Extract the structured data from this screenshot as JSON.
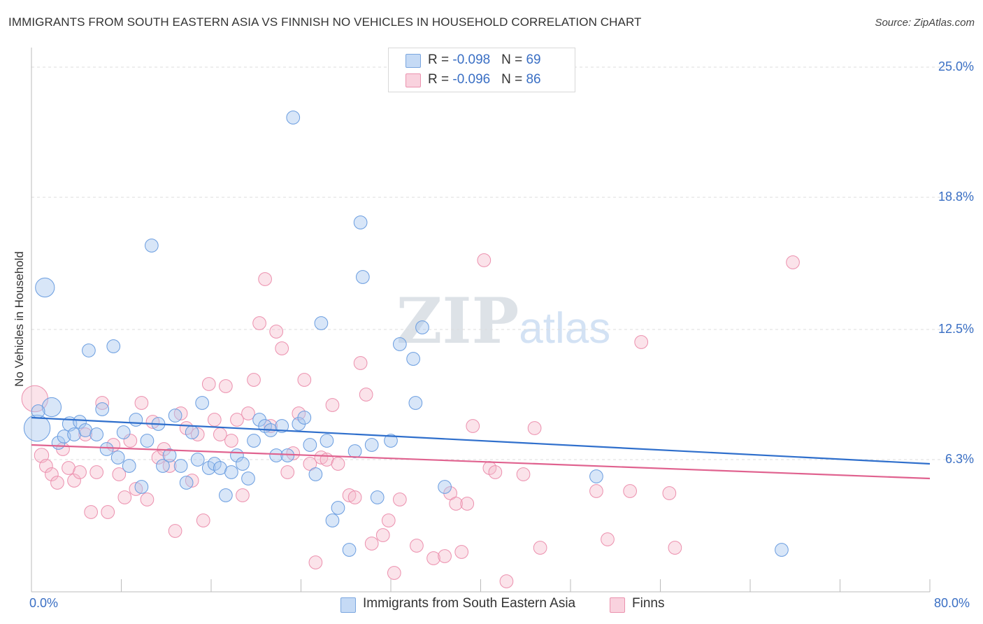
{
  "header": {
    "title": "IMMIGRANTS FROM SOUTH EASTERN ASIA VS FINNISH NO VEHICLES IN HOUSEHOLD CORRELATION CHART",
    "source": "Source: ZipAtlas.com"
  },
  "watermark": "ZIPatlas",
  "legend": {
    "rows": [
      {
        "r_label": "R = ",
        "r_value": "-0.098",
        "n_label": "N = ",
        "n_value": "69",
        "color": "#a8c8f0"
      },
      {
        "r_label": "R = ",
        "r_value": "-0.096",
        "n_label": "N = ",
        "n_value": "86",
        "color": "#f5b8ca"
      }
    ]
  },
  "bottom_legend": {
    "series1": "Immigrants from South Eastern Asia",
    "series2": "Finns"
  },
  "chart_data": {
    "type": "scatter",
    "title": "IMMIGRANTS FROM SOUTH EASTERN ASIA VS FINNISH NO VEHICLES IN HOUSEHOLD CORRELATION CHART",
    "xlabel": "",
    "ylabel": "No Vehicles in Household",
    "xlim": [
      0,
      80
    ],
    "ylim": [
      0,
      25.6
    ],
    "x_tick_labels": [
      "0.0%",
      "80.0%"
    ],
    "y_ticks": [
      6.3,
      12.5,
      18.8,
      25.0
    ],
    "y_tick_labels": [
      "6.3%",
      "12.5%",
      "18.8%",
      "25.0%"
    ],
    "grid": true,
    "legend_position": "top-center",
    "colors": {
      "series1": "#a8c8f0",
      "series1_line": "#2f6fcc",
      "series2": "#f5b8ca",
      "series2_line": "#e0628f"
    },
    "series": [
      {
        "name": "Immigrants from South Eastern Asia",
        "r": -0.098,
        "n": 69,
        "trend": [
          [
            0,
            8.3
          ],
          [
            80,
            6.1
          ]
        ],
        "points": [
          [
            0.5,
            7.8,
            2.2
          ],
          [
            1.2,
            14.5,
            1.6
          ],
          [
            1.8,
            8.8,
            1.6
          ],
          [
            2.4,
            7.1,
            1.1
          ],
          [
            2.9,
            7.4,
            1.1
          ],
          [
            3.4,
            8.0,
            1.2
          ],
          [
            3.8,
            7.5,
            1.1
          ],
          [
            4.3,
            8.1,
            1.1
          ],
          [
            4.8,
            7.7,
            1.1
          ],
          [
            5.1,
            11.5,
            1.1
          ],
          [
            5.8,
            7.5,
            1.1
          ],
          [
            6.3,
            8.7,
            1.1
          ],
          [
            6.7,
            6.8,
            1.1
          ],
          [
            7.3,
            11.7,
            1.1
          ],
          [
            7.7,
            6.4,
            1.1
          ],
          [
            8.2,
            7.6,
            1.1
          ],
          [
            8.7,
            6.0,
            1.1
          ],
          [
            9.3,
            8.2,
            1.1
          ],
          [
            9.8,
            5.0,
            1.1
          ],
          [
            10.3,
            7.2,
            1.1
          ],
          [
            10.7,
            16.5,
            1.1
          ],
          [
            11.3,
            8.0,
            1.1
          ],
          [
            11.7,
            6.0,
            1.1
          ],
          [
            12.3,
            6.5,
            1.1
          ],
          [
            12.8,
            8.4,
            1.1
          ],
          [
            13.3,
            6.0,
            1.1
          ],
          [
            13.8,
            5.2,
            1.1
          ],
          [
            14.3,
            7.6,
            1.1
          ],
          [
            14.8,
            6.3,
            1.1
          ],
          [
            15.2,
            9.0,
            1.1
          ],
          [
            15.8,
            5.9,
            1.1
          ],
          [
            16.3,
            6.1,
            1.1
          ],
          [
            16.8,
            5.9,
            1.1
          ],
          [
            17.3,
            4.6,
            1.1
          ],
          [
            17.8,
            5.7,
            1.1
          ],
          [
            18.3,
            6.5,
            1.1
          ],
          [
            18.8,
            6.1,
            1.1
          ],
          [
            19.3,
            5.4,
            1.1
          ],
          [
            19.8,
            7.2,
            1.1
          ],
          [
            20.3,
            8.2,
            1.1
          ],
          [
            20.8,
            7.9,
            1.1
          ],
          [
            21.3,
            7.7,
            1.1
          ],
          [
            21.8,
            6.5,
            1.1
          ],
          [
            22.3,
            7.9,
            1.1
          ],
          [
            22.8,
            6.5,
            1.1
          ],
          [
            23.3,
            22.6,
            1.1
          ],
          [
            23.8,
            8.0,
            1.1
          ],
          [
            24.3,
            8.3,
            1.1
          ],
          [
            24.8,
            7.0,
            1.1
          ],
          [
            25.3,
            5.6,
            1.1
          ],
          [
            25.8,
            12.8,
            1.1
          ],
          [
            26.3,
            7.2,
            1.1
          ],
          [
            26.8,
            3.4,
            1.1
          ],
          [
            27.3,
            4.0,
            1.1
          ],
          [
            28.3,
            2.0,
            1.1
          ],
          [
            28.8,
            6.7,
            1.1
          ],
          [
            29.3,
            17.6,
            1.1
          ],
          [
            29.5,
            15.0,
            1.1
          ],
          [
            30.3,
            7.0,
            1.1
          ],
          [
            30.8,
            4.5,
            1.1
          ],
          [
            32.0,
            7.2,
            1.1
          ],
          [
            32.8,
            11.8,
            1.1
          ],
          [
            34.0,
            11.1,
            1.1
          ],
          [
            34.2,
            9.0,
            1.1
          ],
          [
            34.8,
            12.6,
            1.1
          ],
          [
            36.8,
            5.0,
            1.1
          ],
          [
            50.3,
            5.5,
            1.1
          ],
          [
            66.8,
            2.0,
            1.1
          ],
          [
            0.6,
            8.6,
            1.1
          ]
        ]
      },
      {
        "name": "Finns",
        "r": -0.096,
        "n": 86,
        "trend": [
          [
            0,
            7.0
          ],
          [
            80,
            5.4
          ]
        ],
        "points": [
          [
            0.3,
            9.2,
            2.2
          ],
          [
            0.9,
            6.5,
            1.2
          ],
          [
            1.3,
            6.0,
            1.1
          ],
          [
            1.8,
            5.6,
            1.1
          ],
          [
            2.3,
            5.2,
            1.1
          ],
          [
            2.8,
            6.8,
            1.1
          ],
          [
            3.3,
            5.9,
            1.1
          ],
          [
            3.8,
            5.3,
            1.1
          ],
          [
            4.3,
            5.7,
            1.1
          ],
          [
            4.8,
            7.5,
            1.1
          ],
          [
            5.3,
            3.8,
            1.1
          ],
          [
            5.8,
            5.7,
            1.1
          ],
          [
            6.3,
            9.0,
            1.1
          ],
          [
            6.8,
            3.8,
            1.1
          ],
          [
            7.3,
            7.0,
            1.1
          ],
          [
            7.8,
            5.6,
            1.1
          ],
          [
            8.3,
            4.5,
            1.1
          ],
          [
            8.8,
            7.2,
            1.1
          ],
          [
            9.3,
            4.9,
            1.1
          ],
          [
            9.8,
            9.0,
            1.1
          ],
          [
            10.3,
            4.4,
            1.1
          ],
          [
            10.8,
            8.1,
            1.1
          ],
          [
            11.3,
            6.4,
            1.1
          ],
          [
            11.8,
            6.8,
            1.1
          ],
          [
            12.3,
            6.0,
            1.1
          ],
          [
            12.8,
            2.9,
            1.1
          ],
          [
            13.3,
            8.5,
            1.1
          ],
          [
            13.8,
            7.8,
            1.1
          ],
          [
            14.3,
            5.3,
            1.1
          ],
          [
            14.8,
            7.5,
            1.1
          ],
          [
            15.3,
            3.4,
            1.1
          ],
          [
            15.8,
            9.9,
            1.1
          ],
          [
            16.3,
            8.2,
            1.1
          ],
          [
            16.8,
            7.5,
            1.1
          ],
          [
            17.3,
            9.8,
            1.1
          ],
          [
            17.8,
            7.2,
            1.1
          ],
          [
            18.3,
            8.2,
            1.1
          ],
          [
            18.8,
            4.6,
            1.1
          ],
          [
            19.3,
            8.5,
            1.1
          ],
          [
            19.8,
            10.1,
            1.1
          ],
          [
            20.3,
            12.8,
            1.1
          ],
          [
            20.8,
            14.9,
            1.1
          ],
          [
            21.3,
            7.9,
            1.1
          ],
          [
            21.8,
            12.4,
            1.1
          ],
          [
            22.3,
            11.6,
            1.1
          ],
          [
            22.8,
            5.7,
            1.1
          ],
          [
            23.3,
            6.6,
            1.1
          ],
          [
            23.8,
            8.5,
            1.1
          ],
          [
            24.3,
            10.1,
            1.1
          ],
          [
            24.8,
            6.1,
            1.1
          ],
          [
            25.3,
            1.4,
            1.1
          ],
          [
            25.8,
            6.4,
            1.1
          ],
          [
            26.3,
            6.3,
            1.1
          ],
          [
            26.8,
            8.9,
            1.1
          ],
          [
            27.3,
            6.1,
            1.1
          ],
          [
            28.3,
            4.6,
            1.1
          ],
          [
            28.8,
            4.5,
            1.1
          ],
          [
            29.3,
            10.9,
            1.1
          ],
          [
            29.8,
            9.4,
            1.1
          ],
          [
            30.3,
            2.3,
            1.1
          ],
          [
            31.3,
            2.7,
            1.1
          ],
          [
            31.8,
            3.4,
            1.1
          ],
          [
            32.3,
            0.9,
            1.1
          ],
          [
            32.8,
            4.4,
            1.1
          ],
          [
            34.3,
            2.2,
            1.1
          ],
          [
            35.8,
            1.6,
            1.1
          ],
          [
            36.8,
            1.7,
            1.1
          ],
          [
            37.3,
            4.7,
            1.1
          ],
          [
            37.8,
            4.2,
            1.1
          ],
          [
            38.3,
            1.9,
            1.1
          ],
          [
            38.8,
            4.2,
            1.1
          ],
          [
            39.3,
            7.9,
            1.1
          ],
          [
            40.3,
            15.8,
            1.1
          ],
          [
            40.8,
            5.9,
            1.1
          ],
          [
            41.3,
            5.7,
            1.1
          ],
          [
            42.3,
            0.5,
            1.1
          ],
          [
            43.8,
            5.6,
            1.1
          ],
          [
            44.8,
            7.8,
            1.1
          ],
          [
            45.3,
            2.1,
            1.1
          ],
          [
            50.3,
            4.8,
            1.1
          ],
          [
            51.3,
            2.5,
            1.1
          ],
          [
            53.3,
            4.8,
            1.1
          ],
          [
            54.3,
            11.9,
            1.1
          ],
          [
            56.8,
            4.7,
            1.1
          ],
          [
            57.3,
            2.1,
            1.1
          ],
          [
            67.8,
            15.7,
            1.1
          ]
        ]
      }
    ]
  }
}
